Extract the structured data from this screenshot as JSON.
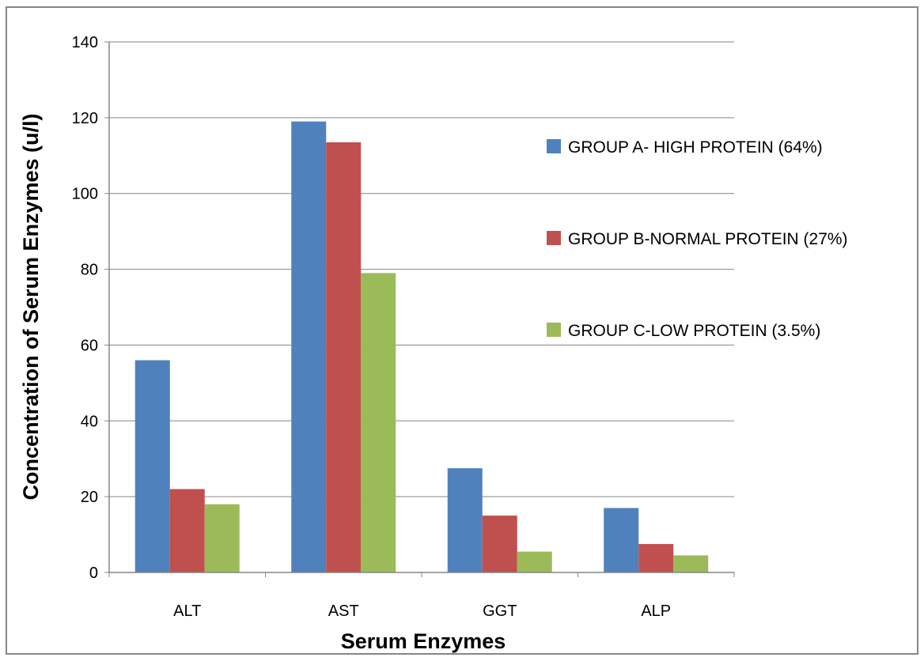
{
  "chart_data": {
    "type": "bar",
    "categories": [
      "ALT",
      "AST",
      "GGT",
      "ALP"
    ],
    "series": [
      {
        "name": "GROUP A- HIGH PROTEIN (64%)",
        "values": [
          56,
          119,
          27.5,
          17
        ],
        "color": "#4f81bd"
      },
      {
        "name": "GROUP B-NORMAL PROTEIN (27%)",
        "values": [
          22,
          113.5,
          15,
          7.5
        ],
        "color": "#c0504d"
      },
      {
        "name": "GROUP C-LOW PROTEIN (3.5%)",
        "values": [
          18,
          79,
          5.5,
          4.5
        ],
        "color": "#9bbb59"
      }
    ],
    "title": "",
    "xlabel": "Serum Enzymes",
    "ylabel": "Concentration of Serum Enzymes (u/l)",
    "ylim": [
      0,
      140
    ],
    "yticks": [
      "0",
      "20",
      "40",
      "60",
      "80",
      "100",
      "120",
      "140"
    ],
    "grid": true,
    "legend_position": "right",
    "colors": {
      "gridline": "#868686",
      "axis": "#868686",
      "border": "#868686"
    }
  }
}
